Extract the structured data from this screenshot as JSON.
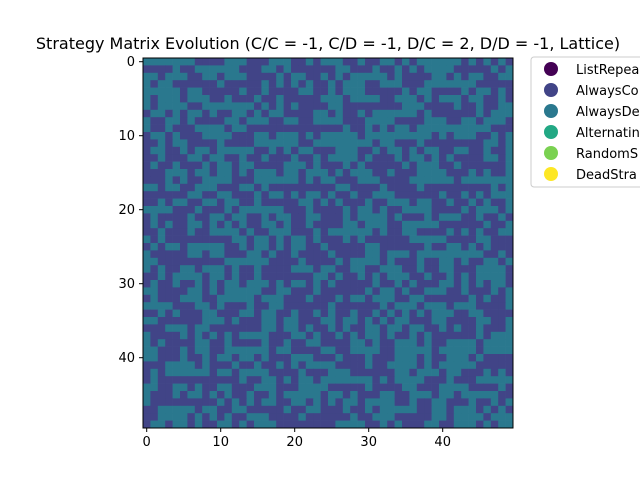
{
  "chart_data": {
    "type": "heatmap",
    "title": "Strategy Matrix Evolution (C/C = -1, C/D = -1, D/C = 2, D/D = -1, Lattice)",
    "xlabel": "",
    "ylabel": "",
    "grid_size": [
      50,
      50
    ],
    "x_range": [
      -0.5,
      49.5
    ],
    "y_range": [
      -0.5,
      49.5
    ],
    "y_inverted": true,
    "x_ticks": [
      0,
      10,
      20,
      30,
      40
    ],
    "y_ticks": [
      0,
      10,
      20,
      30,
      40
    ],
    "legend_position": "upper-right outside",
    "legend": [
      {
        "label": "ListRepea",
        "color": "#440154"
      },
      {
        "label": "AlwaysCo",
        "color": "#414487"
      },
      {
        "label": "AlwaysDe",
        "color": "#2a788e"
      },
      {
        "label": "Alternatin",
        "color": "#22a884"
      },
      {
        "label": "RandomS",
        "color": "#7ad151"
      },
      {
        "label": "DeadStra",
        "color": "#fde725"
      }
    ],
    "present_strategies": [
      "AlwaysCo",
      "AlwaysDe"
    ],
    "pattern_seed": 42
  }
}
